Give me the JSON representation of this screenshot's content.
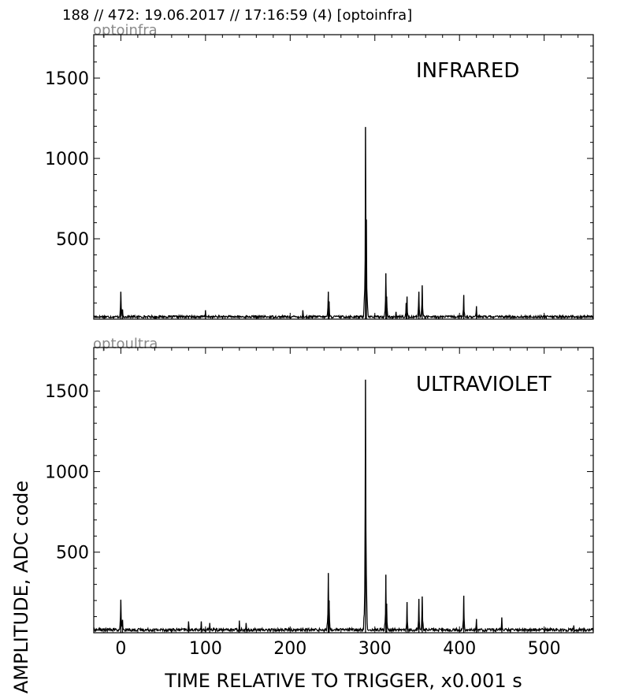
{
  "header": {
    "title": "188 // 472:   19.06.2017 // 17:16:59 (4)  [optoinfra]"
  },
  "ylabel": "AMPLITUDE,  ADC code",
  "xlabel": "TIME RELATIVE TO TRIGGER,   x0.001 s",
  "colors": {
    "trace": "#000000",
    "channel_label": "#8a8a8a",
    "background": "#ffffff"
  },
  "chart_data": [
    {
      "type": "line",
      "channel": "optoinfra",
      "title": "INFRARED",
      "xlim": [
        -32,
        558
      ],
      "ylim": [
        0,
        1770
      ],
      "yticks": [
        500,
        1000,
        1500
      ],
      "xticks": [
        0,
        100,
        200,
        300,
        400,
        500
      ],
      "xtick_labels_shown": false,
      "grid": false,
      "noise_floor": 20,
      "peaks": [
        {
          "x": 0,
          "y": 170
        },
        {
          "x": 2,
          "y": 60
        },
        {
          "x": 100,
          "y": 55
        },
        {
          "x": 215,
          "y": 55
        },
        {
          "x": 245,
          "y": 170
        },
        {
          "x": 246,
          "y": 110
        },
        {
          "x": 289,
          "y": 1195
        },
        {
          "x": 290,
          "y": 620
        },
        {
          "x": 313,
          "y": 285
        },
        {
          "x": 314,
          "y": 140
        },
        {
          "x": 325,
          "y": 45
        },
        {
          "x": 337,
          "y": 100
        },
        {
          "x": 338,
          "y": 140
        },
        {
          "x": 352,
          "y": 170
        },
        {
          "x": 356,
          "y": 210
        },
        {
          "x": 405,
          "y": 150
        },
        {
          "x": 420,
          "y": 80
        }
      ]
    },
    {
      "type": "line",
      "channel": "optoultra",
      "title": "ULTRAVIOLET",
      "xlim": [
        -32,
        558
      ],
      "ylim": [
        0,
        1770
      ],
      "yticks": [
        500,
        1000,
        1500
      ],
      "xticks": [
        0,
        100,
        200,
        300,
        400,
        500
      ],
      "xtick_labels_shown": true,
      "grid": false,
      "noise_floor": 25,
      "peaks": [
        {
          "x": 0,
          "y": 205
        },
        {
          "x": 2,
          "y": 80
        },
        {
          "x": 80,
          "y": 70
        },
        {
          "x": 95,
          "y": 70
        },
        {
          "x": 105,
          "y": 60
        },
        {
          "x": 140,
          "y": 75
        },
        {
          "x": 148,
          "y": 60
        },
        {
          "x": 245,
          "y": 370
        },
        {
          "x": 246,
          "y": 200
        },
        {
          "x": 289,
          "y": 1570
        },
        {
          "x": 313,
          "y": 360
        },
        {
          "x": 314,
          "y": 180
        },
        {
          "x": 338,
          "y": 190
        },
        {
          "x": 352,
          "y": 210
        },
        {
          "x": 356,
          "y": 225
        },
        {
          "x": 405,
          "y": 230
        },
        {
          "x": 420,
          "y": 85
        },
        {
          "x": 450,
          "y": 95
        },
        {
          "x": 535,
          "y": 45
        }
      ]
    }
  ]
}
